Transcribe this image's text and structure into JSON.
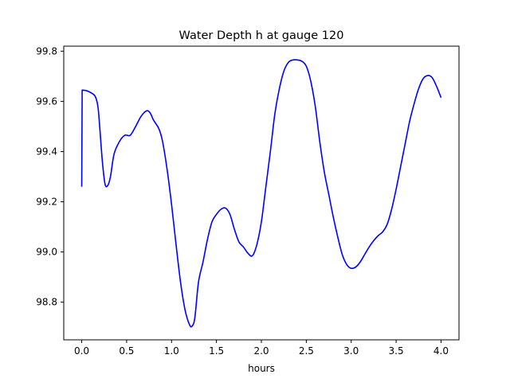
{
  "chart_data": {
    "type": "line",
    "title": "Water Depth h at gauge 120",
    "xlabel": "hours",
    "ylabel": "",
    "xlim": [
      -0.2,
      4.2
    ],
    "ylim": [
      98.65,
      99.82
    ],
    "xticks": [
      0.0,
      0.5,
      1.0,
      1.5,
      2.0,
      2.5,
      3.0,
      3.5,
      4.0
    ],
    "xtick_labels": [
      "0.0",
      "0.5",
      "1.0",
      "1.5",
      "2.0",
      "2.5",
      "3.0",
      "3.5",
      "4.0"
    ],
    "yticks": [
      98.8,
      99.0,
      99.2,
      99.4,
      99.6,
      99.8
    ],
    "ytick_labels": [
      "98.8",
      "99.0",
      "99.2",
      "99.4",
      "99.6",
      "99.8"
    ],
    "grid": false,
    "series": [
      {
        "color": "#0000ff",
        "points": [
          [
            0.0,
            99.26
          ],
          [
            0.005,
            99.645
          ],
          [
            0.05,
            99.643
          ],
          [
            0.1,
            99.635
          ],
          [
            0.15,
            99.62
          ],
          [
            0.18,
            99.58
          ],
          [
            0.2,
            99.5
          ],
          [
            0.23,
            99.36
          ],
          [
            0.26,
            99.27
          ],
          [
            0.29,
            99.265
          ],
          [
            0.32,
            99.3
          ],
          [
            0.36,
            99.39
          ],
          [
            0.42,
            99.44
          ],
          [
            0.48,
            99.465
          ],
          [
            0.54,
            99.465
          ],
          [
            0.6,
            99.5
          ],
          [
            0.66,
            99.54
          ],
          [
            0.72,
            99.562
          ],
          [
            0.76,
            99.555
          ],
          [
            0.8,
            99.525
          ],
          [
            0.86,
            99.49
          ],
          [
            0.9,
            99.44
          ],
          [
            0.95,
            99.33
          ],
          [
            1.0,
            99.19
          ],
          [
            1.05,
            99.03
          ],
          [
            1.1,
            98.88
          ],
          [
            1.15,
            98.77
          ],
          [
            1.2,
            98.71
          ],
          [
            1.23,
            98.705
          ],
          [
            1.26,
            98.74
          ],
          [
            1.3,
            98.88
          ],
          [
            1.35,
            98.96
          ],
          [
            1.4,
            99.05
          ],
          [
            1.45,
            99.12
          ],
          [
            1.5,
            99.15
          ],
          [
            1.55,
            99.17
          ],
          [
            1.6,
            99.175
          ],
          [
            1.65,
            99.15
          ],
          [
            1.7,
            99.09
          ],
          [
            1.75,
            99.04
          ],
          [
            1.8,
            99.02
          ],
          [
            1.85,
            98.995
          ],
          [
            1.9,
            98.985
          ],
          [
            1.95,
            99.03
          ],
          [
            2.0,
            99.12
          ],
          [
            2.05,
            99.26
          ],
          [
            2.1,
            99.4
          ],
          [
            2.15,
            99.55
          ],
          [
            2.2,
            99.65
          ],
          [
            2.25,
            99.72
          ],
          [
            2.3,
            99.755
          ],
          [
            2.35,
            99.765
          ],
          [
            2.4,
            99.765
          ],
          [
            2.45,
            99.76
          ],
          [
            2.5,
            99.74
          ],
          [
            2.55,
            99.68
          ],
          [
            2.6,
            99.58
          ],
          [
            2.65,
            99.44
          ],
          [
            2.7,
            99.32
          ],
          [
            2.75,
            99.23
          ],
          [
            2.8,
            99.14
          ],
          [
            2.85,
            99.06
          ],
          [
            2.9,
            98.99
          ],
          [
            2.95,
            98.95
          ],
          [
            3.0,
            98.935
          ],
          [
            3.05,
            98.94
          ],
          [
            3.1,
            98.96
          ],
          [
            3.15,
            98.99
          ],
          [
            3.2,
            99.02
          ],
          [
            3.25,
            99.045
          ],
          [
            3.3,
            99.065
          ],
          [
            3.35,
            99.08
          ],
          [
            3.4,
            99.11
          ],
          [
            3.45,
            99.17
          ],
          [
            3.5,
            99.25
          ],
          [
            3.55,
            99.34
          ],
          [
            3.6,
            99.43
          ],
          [
            3.65,
            99.52
          ],
          [
            3.7,
            99.59
          ],
          [
            3.75,
            99.65
          ],
          [
            3.8,
            99.69
          ],
          [
            3.85,
            99.703
          ],
          [
            3.9,
            99.695
          ],
          [
            3.95,
            99.66
          ],
          [
            4.0,
            99.615
          ]
        ]
      }
    ]
  }
}
